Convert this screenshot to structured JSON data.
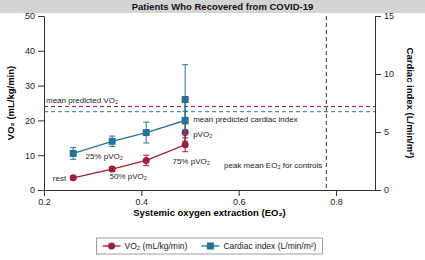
{
  "chart_data": {
    "type": "line",
    "title": "Patients Who Recovered from COVID-19",
    "x_label": "Systemic oxygen extraction (EO₂)",
    "y_label": "VO₂ (mL/kg/min)",
    "y2_label": "Cardiac index (L/min/m²)",
    "x": [
      0.26,
      0.34,
      0.41,
      0.49,
      0.49
    ],
    "point_labels": [
      "rest",
      "25% pVO₂",
      "50% pVO₂",
      "75% pVO₂",
      "pVO₂"
    ],
    "series": [
      {
        "name": "VO₂ (mL/kg/min)",
        "color": "#9e1f3a",
        "marker": "circle",
        "values": [
          3.5,
          6,
          8.5,
          13,
          16.5
        ],
        "errors": [
          0.5,
          0.7,
          1.5,
          2,
          2.5
        ]
      },
      {
        "name": "Cardiac index (L/min/m²)",
        "color": "#2b6f95",
        "marker": "square",
        "axis": "y2",
        "values": [
          3.15,
          4.2,
          4.95,
          6.0,
          7.8
        ],
        "errors": [
          0.5,
          0.45,
          0.9,
          0.8,
          3.0
        ]
      }
    ],
    "reference_lines": [
      {
        "label": "mean predicted VO₂",
        "value": 24,
        "axis": "y",
        "color": "#9e1f3a",
        "line_style": "dashed"
      },
      {
        "label": "mean predicted cardiac index",
        "value": 6.75,
        "axis": "y2",
        "color": "#2b6f95",
        "line_style": "dashed"
      },
      {
        "label": "peak mean EO₂ for controls",
        "value": 0.78,
        "axis": "x",
        "color": "#333333",
        "line_style": "dashed"
      }
    ],
    "xlim": [
      0.2,
      0.88
    ],
    "xticks": [
      0.2,
      0.4,
      0.6,
      0.8
    ],
    "ylim": [
      0,
      50
    ],
    "yticks": [
      0,
      10,
      20,
      30,
      40,
      50
    ],
    "y2lim": [
      0,
      15
    ],
    "y2ticks": [
      0,
      5,
      10,
      15
    ],
    "legend": "bottom",
    "grid": false
  }
}
